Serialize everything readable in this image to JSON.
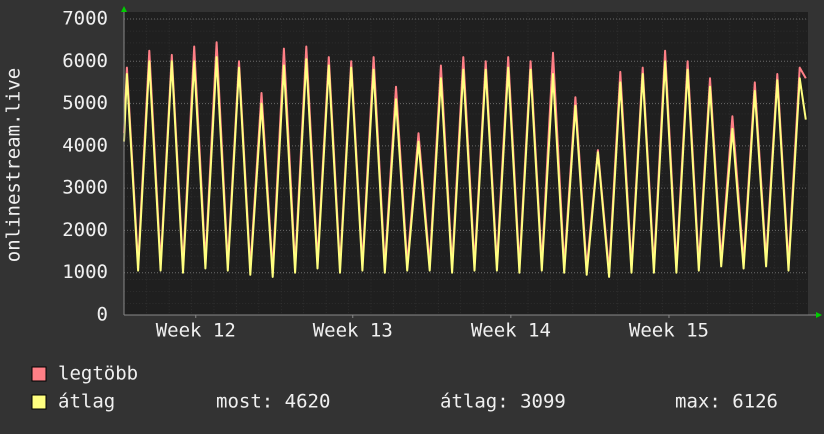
{
  "chart_data": {
    "type": "line",
    "y_label": "onlinestream.live",
    "x": [
      0,
      0.13,
      0.63,
      1.13,
      1.63,
      2.13,
      2.63,
      3.13,
      3.63,
      4.13,
      4.63,
      5.13,
      5.63,
      6.13,
      6.63,
      7.13,
      7.63,
      8.13,
      8.63,
      9.13,
      9.63,
      10.13,
      10.63,
      11.13,
      11.63,
      12.13,
      12.63,
      13.13,
      13.63,
      14.13,
      14.63,
      15.13,
      15.63,
      16.13,
      16.63,
      17.13,
      17.63,
      18.13,
      18.63,
      19.13,
      19.63,
      20.13,
      20.63,
      21.13,
      21.63,
      22.13,
      22.63,
      23.13,
      23.63,
      24.13,
      24.63,
      25.13,
      25.63,
      26.13,
      26.63,
      27.13,
      27.63,
      28.13,
      28.63,
      29.13,
      29.63,
      30.13,
      30.4
    ],
    "series": [
      {
        "name": "legtöbb",
        "color": "#ff7f86",
        "values": [
          4300,
          5850,
          1200,
          6250,
          1200,
          6150,
          1150,
          6350,
          1250,
          6450,
          1200,
          6000,
          1100,
          5250,
          1050,
          6300,
          1150,
          6350,
          1250,
          6100,
          1150,
          6000,
          1200,
          6100,
          1150,
          5400,
          1200,
          4300,
          1200,
          5900,
          1150,
          6100,
          1200,
          6000,
          1200,
          6100,
          1150,
          6000,
          1200,
          6200,
          1150,
          5150,
          1100,
          3900,
          1050,
          5750,
          1150,
          5850,
          1150,
          6250,
          1150,
          6000,
          1200,
          5600,
          1300,
          4700,
          1250,
          5500,
          1300,
          5700,
          1200,
          5850,
          5600
        ]
      },
      {
        "name": "átlag",
        "color": "#ffff80",
        "values": [
          4100,
          5700,
          1050,
          6000,
          1050,
          6000,
          1000,
          6000,
          1100,
          6100,
          1050,
          5850,
          950,
          5000,
          900,
          5900,
          1000,
          6050,
          1100,
          5900,
          1000,
          5850,
          1050,
          5800,
          1000,
          5100,
          1050,
          4100,
          1050,
          5600,
          1000,
          5800,
          1050,
          5800,
          1050,
          5850,
          1000,
          5800,
          1050,
          5700,
          1000,
          4950,
          950,
          3850,
          900,
          5500,
          1000,
          5700,
          1000,
          6000,
          1000,
          5800,
          1050,
          5400,
          1150,
          4400,
          1100,
          5300,
          1150,
          5550,
          1050,
          5600,
          4620
        ]
      }
    ],
    "xlim": [
      0,
      30.5
    ],
    "xticks": [
      {
        "value": 3.2,
        "label": "Week 12"
      },
      {
        "value": 10.2,
        "label": "Week 13"
      },
      {
        "value": 17.25,
        "label": "Week 14"
      },
      {
        "value": 24.3,
        "label": "Week 15"
      }
    ],
    "ylim": [
      0,
      7000
    ],
    "yticks": [
      0,
      1000,
      2000,
      3000,
      4000,
      5000,
      6000,
      7000
    ],
    "grid": true,
    "stats": [
      "most: 4620",
      "átlag: 3099",
      "max: 6126"
    ]
  }
}
